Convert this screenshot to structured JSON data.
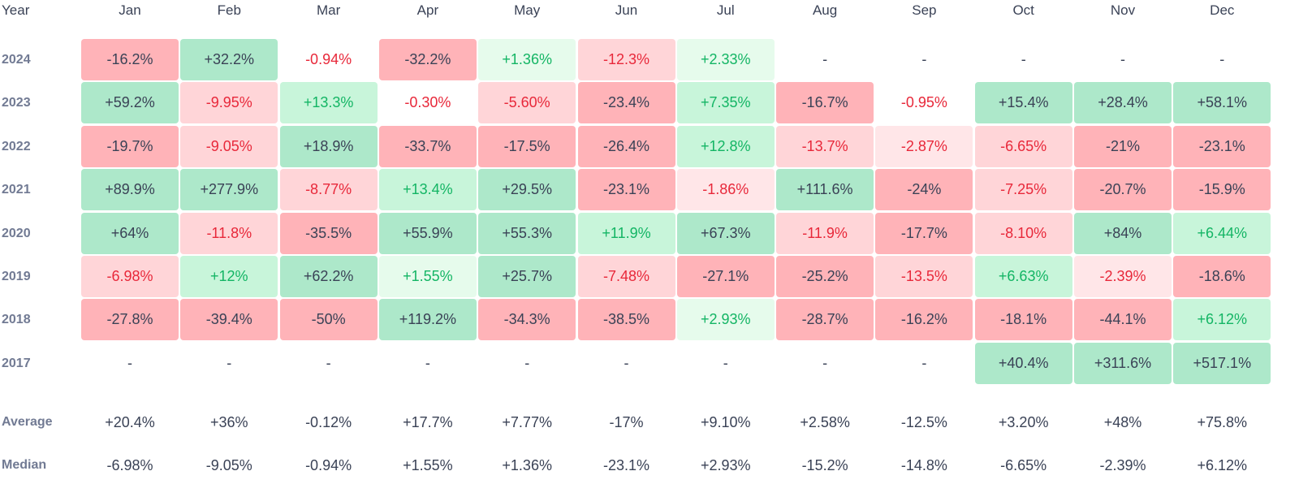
{
  "header": {
    "year_label": "Year"
  },
  "months": [
    "Jan",
    "Feb",
    "Mar",
    "Apr",
    "May",
    "Jun",
    "Jul",
    "Aug",
    "Sep",
    "Oct",
    "Nov",
    "Dec"
  ],
  "colors": {
    "green_strong": "#ade8ca",
    "green_medium": "#c8f5da",
    "green_light": "#e6fbec",
    "red_strong": "#ffb3b8",
    "red_medium": "#ffd5d8",
    "red_light": "#ffe6e8",
    "text_dark": "#3a4256",
    "text_green": "#13b564",
    "text_red": "#e8283a",
    "label_gray": "#717a93"
  },
  "chart_data": {
    "type": "table",
    "rows": [
      {
        "year": "2024",
        "values": [
          "-16.2%",
          "+32.2%",
          "-0.94%",
          "-32.2%",
          "+1.36%",
          "-12.3%",
          "+2.33%",
          "-",
          "-",
          "-",
          "-",
          "-"
        ],
        "shades": [
          "rs",
          "gs",
          "",
          "rs",
          "gl",
          "rm",
          "gl",
          "",
          "",
          "",
          "",
          ""
        ]
      },
      {
        "year": "2023",
        "values": [
          "+59.2%",
          "-9.95%",
          "+13.3%",
          "-0.30%",
          "-5.60%",
          "-23.4%",
          "+7.35%",
          "-16.7%",
          "-0.95%",
          "+15.4%",
          "+28.4%",
          "+58.1%"
        ],
        "shades": [
          "gs",
          "rm",
          "gm",
          "",
          "rm",
          "rs",
          "gm",
          "rs",
          "",
          "gs",
          "gs",
          "gs"
        ]
      },
      {
        "year": "2022",
        "values": [
          "-19.7%",
          "-9.05%",
          "+18.9%",
          "-33.7%",
          "-17.5%",
          "-26.4%",
          "+12.8%",
          "-13.7%",
          "-2.87%",
          "-6.65%",
          "-21%",
          "-23.1%"
        ],
        "shades": [
          "rs",
          "rm",
          "gs",
          "rs",
          "rs",
          "rs",
          "gm",
          "rm",
          "rl",
          "rm",
          "rs",
          "rs"
        ]
      },
      {
        "year": "2021",
        "values": [
          "+89.9%",
          "+277.9%",
          "-8.77%",
          "+13.4%",
          "+29.5%",
          "-23.1%",
          "-1.86%",
          "+111.6%",
          "-24%",
          "-7.25%",
          "-20.7%",
          "-15.9%"
        ],
        "shades": [
          "gs",
          "gs",
          "rm",
          "gm",
          "gs",
          "rs",
          "rl",
          "gs",
          "rs",
          "rm",
          "rs",
          "rs"
        ]
      },
      {
        "year": "2020",
        "values": [
          "+64%",
          "-11.8%",
          "-35.5%",
          "+55.9%",
          "+55.3%",
          "+11.9%",
          "+67.3%",
          "-11.9%",
          "-17.7%",
          "-8.10%",
          "+84%",
          "+6.44%"
        ],
        "shades": [
          "gs",
          "rm",
          "rs",
          "gs",
          "gs",
          "gm",
          "gs",
          "rm",
          "rs",
          "rm",
          "gs",
          "gm"
        ]
      },
      {
        "year": "2019",
        "values": [
          "-6.98%",
          "+12%",
          "+62.2%",
          "+1.55%",
          "+25.7%",
          "-7.48%",
          "-27.1%",
          "-25.2%",
          "-13.5%",
          "+6.63%",
          "-2.39%",
          "-18.6%"
        ],
        "shades": [
          "rm",
          "gm",
          "gs",
          "gl",
          "gs",
          "rm",
          "rs",
          "rs",
          "rm",
          "gm",
          "rl",
          "rs"
        ]
      },
      {
        "year": "2018",
        "values": [
          "-27.8%",
          "-39.4%",
          "-50%",
          "+119.2%",
          "-34.3%",
          "-38.5%",
          "+2.93%",
          "-28.7%",
          "-16.2%",
          "-18.1%",
          "-44.1%",
          "+6.12%"
        ],
        "shades": [
          "rs",
          "rs",
          "rs",
          "gs",
          "rs",
          "rs",
          "gl",
          "rs",
          "rs",
          "rs",
          "rs",
          "gm"
        ]
      },
      {
        "year": "2017",
        "values": [
          "-",
          "-",
          "-",
          "-",
          "-",
          "-",
          "-",
          "-",
          "-",
          "+40.4%",
          "+311.6%",
          "+517.1%"
        ],
        "shades": [
          "",
          "",
          "",
          "",
          "",
          "",
          "",
          "",
          "",
          "gs",
          "gs",
          "gs"
        ]
      }
    ],
    "summary": [
      {
        "label": "Average",
        "values": [
          "+20.4%",
          "+36%",
          "-0.12%",
          "+17.7%",
          "+7.77%",
          "-17%",
          "+9.10%",
          "+2.58%",
          "-12.5%",
          "+3.20%",
          "+48%",
          "+75.8%"
        ]
      },
      {
        "label": "Median",
        "values": [
          "-6.98%",
          "-9.05%",
          "-0.94%",
          "+1.55%",
          "+1.36%",
          "-23.1%",
          "+2.93%",
          "-15.2%",
          "-14.8%",
          "-6.65%",
          "-2.39%",
          "+6.12%"
        ]
      }
    ]
  }
}
